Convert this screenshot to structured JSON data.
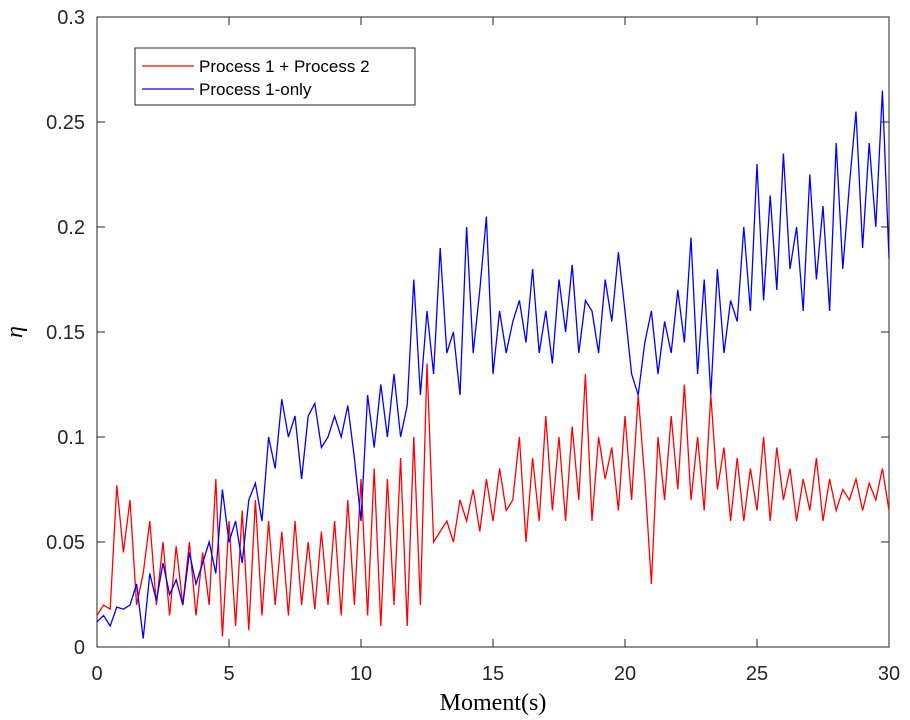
{
  "chart_data": {
    "type": "line",
    "xlabel": "Moment(s)",
    "ylabel": "η",
    "x": [
      0,
      0.25,
      0.5,
      0.75,
      1,
      1.25,
      1.5,
      1.75,
      2,
      2.25,
      2.5,
      2.75,
      3,
      3.25,
      3.5,
      3.75,
      4,
      4.25,
      4.5,
      4.75,
      5,
      5.25,
      5.5,
      5.75,
      6,
      6.25,
      6.5,
      6.75,
      7,
      7.25,
      7.5,
      7.75,
      8,
      8.25,
      8.5,
      8.75,
      9,
      9.25,
      9.5,
      9.75,
      10,
      10.25,
      10.5,
      10.75,
      11,
      11.25,
      11.5,
      11.75,
      12,
      12.25,
      12.5,
      12.75,
      13,
      13.25,
      13.5,
      13.75,
      14,
      14.25,
      14.5,
      14.75,
      15,
      15.25,
      15.5,
      15.75,
      16,
      16.25,
      16.5,
      16.75,
      17,
      17.25,
      17.5,
      17.75,
      18,
      18.25,
      18.5,
      18.75,
      19,
      19.25,
      19.5,
      19.75,
      20,
      20.25,
      20.5,
      20.75,
      21,
      21.25,
      21.5,
      21.75,
      22,
      22.25,
      22.5,
      22.75,
      23,
      23.25,
      23.5,
      23.75,
      24,
      24.25,
      24.5,
      24.75,
      25,
      25.25,
      25.5,
      25.75,
      26,
      26.25,
      26.5,
      26.75,
      27,
      27.25,
      27.5,
      27.75,
      28,
      28.25,
      28.5,
      28.75,
      29,
      29.25,
      29.5,
      29.75,
      30
    ],
    "series": [
      {
        "name": "Process 1 + Process 2",
        "color": "#ff0000",
        "values": [
          0.015,
          0.02,
          0.018,
          0.077,
          0.045,
          0.07,
          0.02,
          0.035,
          0.06,
          0.02,
          0.05,
          0.015,
          0.048,
          0.02,
          0.05,
          0.015,
          0.045,
          0.02,
          0.08,
          0.005,
          0.06,
          0.01,
          0.065,
          0.008,
          0.07,
          0.015,
          0.06,
          0.02,
          0.055,
          0.015,
          0.06,
          0.02,
          0.05,
          0.018,
          0.055,
          0.02,
          0.06,
          0.015,
          0.07,
          0.02,
          0.08,
          0.015,
          0.085,
          0.01,
          0.08,
          0.02,
          0.09,
          0.01,
          0.1,
          0.02,
          0.135,
          0.05,
          0.055,
          0.06,
          0.05,
          0.07,
          0.06,
          0.075,
          0.055,
          0.08,
          0.06,
          0.085,
          0.065,
          0.07,
          0.1,
          0.05,
          0.09,
          0.06,
          0.11,
          0.065,
          0.1,
          0.06,
          0.105,
          0.07,
          0.13,
          0.06,
          0.1,
          0.08,
          0.095,
          0.065,
          0.11,
          0.07,
          0.12,
          0.08,
          0.03,
          0.1,
          0.07,
          0.11,
          0.075,
          0.125,
          0.07,
          0.1,
          0.065,
          0.12,
          0.075,
          0.095,
          0.06,
          0.09,
          0.06,
          0.085,
          0.065,
          0.1,
          0.06,
          0.095,
          0.07,
          0.085,
          0.06,
          0.08,
          0.065,
          0.09,
          0.06,
          0.08,
          0.065,
          0.075,
          0.07,
          0.08,
          0.065,
          0.078,
          0.07,
          0.085,
          0.065
        ]
      },
      {
        "name": "Process 1-only",
        "color": "#0000ff",
        "values": [
          0.012,
          0.015,
          0.01,
          0.019,
          0.018,
          0.02,
          0.03,
          0.004,
          0.035,
          0.022,
          0.04,
          0.025,
          0.032,
          0.02,
          0.045,
          0.03,
          0.04,
          0.05,
          0.035,
          0.075,
          0.05,
          0.06,
          0.04,
          0.07,
          0.078,
          0.06,
          0.1,
          0.085,
          0.118,
          0.1,
          0.11,
          0.08,
          0.11,
          0.116,
          0.095,
          0.1,
          0.11,
          0.1,
          0.115,
          0.09,
          0.06,
          0.12,
          0.095,
          0.125,
          0.1,
          0.13,
          0.1,
          0.115,
          0.175,
          0.12,
          0.16,
          0.13,
          0.19,
          0.14,
          0.15,
          0.12,
          0.2,
          0.14,
          0.17,
          0.205,
          0.13,
          0.16,
          0.14,
          0.155,
          0.165,
          0.145,
          0.18,
          0.14,
          0.16,
          0.135,
          0.175,
          0.15,
          0.182,
          0.14,
          0.165,
          0.16,
          0.14,
          0.175,
          0.155,
          0.188,
          0.16,
          0.13,
          0.12,
          0.145,
          0.16,
          0.13,
          0.155,
          0.14,
          0.17,
          0.145,
          0.195,
          0.13,
          0.175,
          0.12,
          0.18,
          0.14,
          0.165,
          0.155,
          0.2,
          0.16,
          0.23,
          0.165,
          0.215,
          0.17,
          0.235,
          0.18,
          0.2,
          0.16,
          0.225,
          0.175,
          0.21,
          0.16,
          0.24,
          0.18,
          0.22,
          0.255,
          0.19,
          0.24,
          0.2,
          0.265,
          0.185
        ]
      }
    ],
    "xlim": [
      0,
      30
    ],
    "xticks": [
      0,
      5,
      10,
      15,
      20,
      25,
      30
    ],
    "ylim": [
      0,
      0.3
    ],
    "yticks": [
      0,
      0.05,
      0.1,
      0.15,
      0.2,
      0.25,
      0.3
    ],
    "legend": "upper left"
  }
}
